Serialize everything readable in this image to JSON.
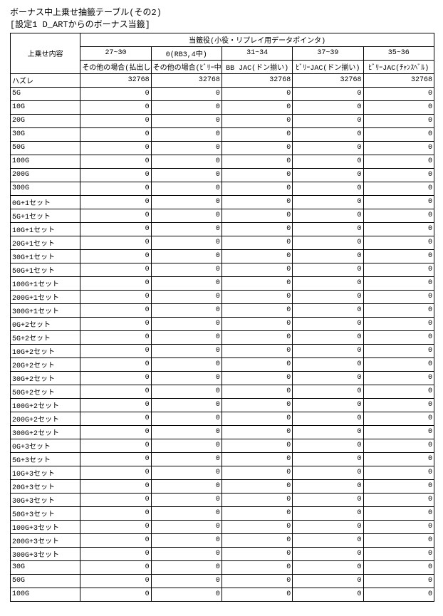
{
  "title": "ボーナス中上乗せ抽籤テーブル(その2)",
  "subtitle": "[設定1 D_ARTからのボーナス当籤]",
  "rowHeaderLabel": "上乗せ内容",
  "superHeader": "当籤役(小役・リプレイ用データポインタ)",
  "columns": [
    {
      "group": "27~30",
      "sub": "その他の場合(払出し役)"
    },
    {
      "group": "0(RB3,4中)",
      "sub": "その他の場合(ﾋﾞﾘｰ中ﾊｽﾞﾚ)"
    },
    {
      "group": "31~34",
      "sub": "BB JAC(ドン揃い)"
    },
    {
      "group": "37~39",
      "sub": "ﾋﾞﾘｰJAC(ドン揃い)"
    },
    {
      "group": "35~36",
      "sub": "ﾋﾞﾘｰJAC(ﾁｬﾝｽﾍﾞﾙ)"
    }
  ],
  "rows": [
    {
      "label": "ハズレ",
      "v": [
        32768,
        32768,
        32768,
        32768,
        32768
      ]
    },
    {
      "label": "5G",
      "v": [
        0,
        0,
        0,
        0,
        0
      ]
    },
    {
      "label": "10G",
      "v": [
        0,
        0,
        0,
        0,
        0
      ]
    },
    {
      "label": "20G",
      "v": [
        0,
        0,
        0,
        0,
        0
      ]
    },
    {
      "label": "30G",
      "v": [
        0,
        0,
        0,
        0,
        0
      ]
    },
    {
      "label": "50G",
      "v": [
        0,
        0,
        0,
        0,
        0
      ]
    },
    {
      "label": "100G",
      "v": [
        0,
        0,
        0,
        0,
        0
      ]
    },
    {
      "label": "200G",
      "v": [
        0,
        0,
        0,
        0,
        0
      ]
    },
    {
      "label": "300G",
      "v": [
        0,
        0,
        0,
        0,
        0
      ]
    },
    {
      "label": "0G+1セット",
      "v": [
        0,
        0,
        0,
        0,
        0
      ]
    },
    {
      "label": "5G+1セット",
      "v": [
        0,
        0,
        0,
        0,
        0
      ]
    },
    {
      "label": "10G+1セット",
      "v": [
        0,
        0,
        0,
        0,
        0
      ]
    },
    {
      "label": "20G+1セット",
      "v": [
        0,
        0,
        0,
        0,
        0
      ]
    },
    {
      "label": "30G+1セット",
      "v": [
        0,
        0,
        0,
        0,
        0
      ]
    },
    {
      "label": "50G+1セット",
      "v": [
        0,
        0,
        0,
        0,
        0
      ]
    },
    {
      "label": "100G+1セット",
      "v": [
        0,
        0,
        0,
        0,
        0
      ]
    },
    {
      "label": "200G+1セット",
      "v": [
        0,
        0,
        0,
        0,
        0
      ]
    },
    {
      "label": "300G+1セット",
      "v": [
        0,
        0,
        0,
        0,
        0
      ]
    },
    {
      "label": "0G+2セット",
      "v": [
        0,
        0,
        0,
        0,
        0
      ]
    },
    {
      "label": "5G+2セット",
      "v": [
        0,
        0,
        0,
        0,
        0
      ]
    },
    {
      "label": "10G+2セット",
      "v": [
        0,
        0,
        0,
        0,
        0
      ]
    },
    {
      "label": "20G+2セット",
      "v": [
        0,
        0,
        0,
        0,
        0
      ]
    },
    {
      "label": "30G+2セット",
      "v": [
        0,
        0,
        0,
        0,
        0
      ]
    },
    {
      "label": "50G+2セット",
      "v": [
        0,
        0,
        0,
        0,
        0
      ]
    },
    {
      "label": "100G+2セット",
      "v": [
        0,
        0,
        0,
        0,
        0
      ]
    },
    {
      "label": "200G+2セット",
      "v": [
        0,
        0,
        0,
        0,
        0
      ]
    },
    {
      "label": "300G+2セット",
      "v": [
        0,
        0,
        0,
        0,
        0
      ]
    },
    {
      "label": "0G+3セット",
      "v": [
        0,
        0,
        0,
        0,
        0
      ]
    },
    {
      "label": "5G+3セット",
      "v": [
        0,
        0,
        0,
        0,
        0
      ]
    },
    {
      "label": "10G+3セット",
      "v": [
        0,
        0,
        0,
        0,
        0
      ]
    },
    {
      "label": "20G+3セット",
      "v": [
        0,
        0,
        0,
        0,
        0
      ]
    },
    {
      "label": "30G+3セット",
      "v": [
        0,
        0,
        0,
        0,
        0
      ]
    },
    {
      "label": "50G+3セット",
      "v": [
        0,
        0,
        0,
        0,
        0
      ]
    },
    {
      "label": "100G+3セット",
      "v": [
        0,
        0,
        0,
        0,
        0
      ]
    },
    {
      "label": "200G+3セット",
      "v": [
        0,
        0,
        0,
        0,
        0
      ]
    },
    {
      "label": "300G+3セット",
      "v": [
        0,
        0,
        0,
        0,
        0
      ]
    },
    {
      "label": "30G",
      "v": [
        0,
        0,
        0,
        0,
        0
      ]
    },
    {
      "label": "50G",
      "v": [
        0,
        0,
        0,
        0,
        0
      ]
    },
    {
      "label": "100G",
      "v": [
        0,
        0,
        0,
        0,
        0
      ]
    }
  ]
}
